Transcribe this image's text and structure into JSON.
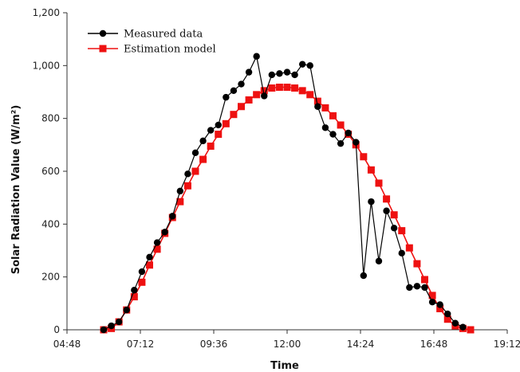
{
  "chart_data": {
    "type": "line",
    "title": "",
    "xlabel": "Time",
    "ylabel": "Solar Radiation Value (W/m²)",
    "x_unit": "hours",
    "xlim": [
      4.8,
      19.2
    ],
    "ylim": [
      0,
      1200
    ],
    "x_ticks": [
      {
        "value": 4.8,
        "label": "04:48"
      },
      {
        "value": 7.2,
        "label": "07:12"
      },
      {
        "value": 9.6,
        "label": "09:36"
      },
      {
        "value": 12.0,
        "label": "12:00"
      },
      {
        "value": 14.4,
        "label": "14:24"
      },
      {
        "value": 16.8,
        "label": "16:48"
      },
      {
        "value": 19.2,
        "label": "19:12"
      }
    ],
    "y_ticks": [
      {
        "value": 0,
        "label": "0"
      },
      {
        "value": 200,
        "label": "200"
      },
      {
        "value": 400,
        "label": "400"
      },
      {
        "value": 600,
        "label": "600"
      },
      {
        "value": 800,
        "label": "800"
      },
      {
        "value": 1000,
        "label": "1,000"
      },
      {
        "value": 1200,
        "label": "1,200"
      }
    ],
    "grid": false,
    "legend_position": "top-left",
    "series": [
      {
        "name": "Measured data",
        "color": "#000000",
        "marker": "circle",
        "x": [
          6.0,
          6.25,
          6.5,
          6.75,
          7.0,
          7.25,
          7.5,
          7.75,
          8.0,
          8.25,
          8.5,
          8.75,
          9.0,
          9.25,
          9.5,
          9.75,
          10.0,
          10.25,
          10.5,
          10.75,
          11.0,
          11.25,
          11.5,
          11.75,
          12.0,
          12.25,
          12.5,
          12.75,
          13.0,
          13.25,
          13.5,
          13.75,
          14.0,
          14.25,
          14.5,
          14.75,
          15.0,
          15.25,
          15.5,
          15.75,
          16.0,
          16.25,
          16.5,
          16.75,
          17.0,
          17.25,
          17.5,
          17.75
        ],
        "values": [
          0,
          15,
          30,
          75,
          150,
          220,
          275,
          330,
          370,
          430,
          525,
          590,
          670,
          715,
          755,
          775,
          880,
          905,
          930,
          975,
          1035,
          885,
          965,
          970,
          975,
          965,
          1005,
          1000,
          845,
          765,
          740,
          705,
          745,
          710,
          205,
          485,
          260,
          450,
          385,
          290,
          160,
          165,
          160,
          105,
          95,
          60,
          25,
          10
        ]
      },
      {
        "name": "Estimation model",
        "color": "#ee1111",
        "marker": "square",
        "x": [
          6.0,
          6.25,
          6.5,
          6.75,
          7.0,
          7.25,
          7.5,
          7.75,
          8.0,
          8.25,
          8.5,
          8.75,
          9.0,
          9.25,
          9.5,
          9.75,
          10.0,
          10.25,
          10.5,
          10.75,
          11.0,
          11.25,
          11.5,
          11.75,
          12.0,
          12.25,
          12.5,
          12.75,
          13.0,
          13.25,
          13.5,
          13.75,
          14.0,
          14.25,
          14.5,
          14.75,
          15.0,
          15.25,
          15.5,
          15.75,
          16.0,
          16.25,
          16.5,
          16.75,
          17.0,
          17.25,
          17.5,
          17.75,
          18.0
        ],
        "values": [
          0,
          5,
          30,
          75,
          125,
          180,
          245,
          305,
          365,
          425,
          485,
          545,
          600,
          645,
          695,
          740,
          780,
          815,
          845,
          870,
          890,
          905,
          915,
          918,
          918,
          915,
          905,
          890,
          865,
          840,
          810,
          775,
          740,
          700,
          655,
          605,
          555,
          495,
          435,
          375,
          310,
          250,
          190,
          130,
          80,
          40,
          15,
          5,
          0
        ]
      }
    ]
  }
}
